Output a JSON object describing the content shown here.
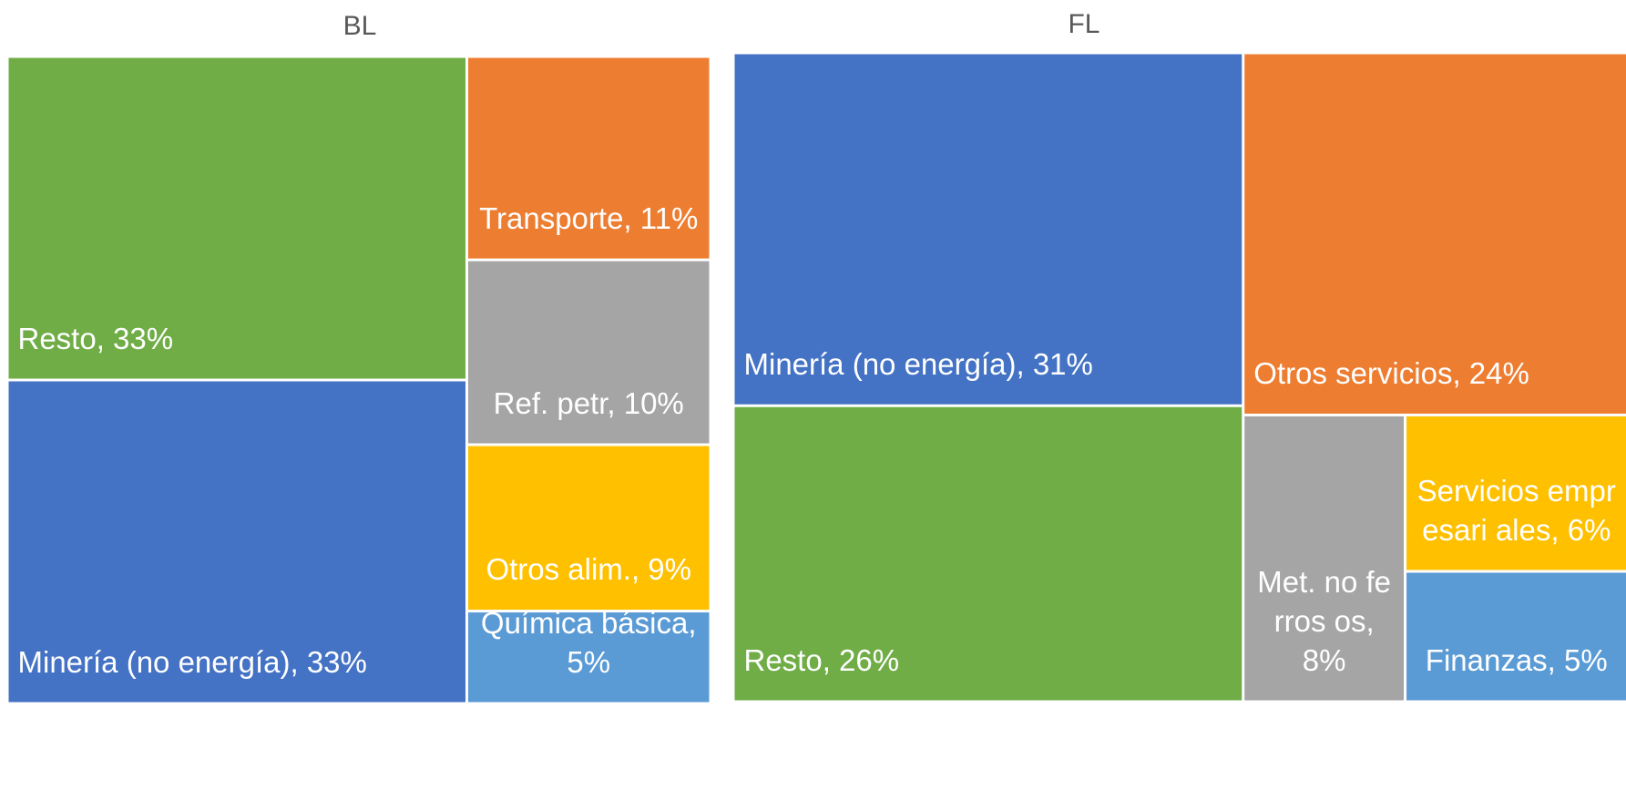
{
  "chart_data": [
    {
      "type": "treemap",
      "title": "BL",
      "labels": [
        "Resto, 33%",
        "Minería (no energía), 33%",
        "Transporte, 11%",
        "Ref. petr, 10%",
        "Otros alim., 9%",
        "Química básica, 5%"
      ],
      "values": [
        33,
        33,
        11,
        10,
        9,
        5
      ],
      "colors": [
        "#70ad47",
        "#4472c4",
        "#ed7d31",
        "#a5a5a5",
        "#ffc000",
        "#5b9bd5"
      ]
    },
    {
      "type": "treemap",
      "title": "FL",
      "labels": [
        "Minería (no energía), 31%",
        "Resto, 26%",
        "Otros servicios, 24%",
        "Met. no ferros os, 8%",
        "Servicios empresari ales, 6%",
        "Finanzas, 5%"
      ],
      "values": [
        31,
        26,
        24,
        8,
        6,
        5
      ],
      "colors": [
        "#4472c4",
        "#70ad47",
        "#ed7d31",
        "#a5a5a5",
        "#ffc000",
        "#5b9bd5"
      ]
    }
  ]
}
